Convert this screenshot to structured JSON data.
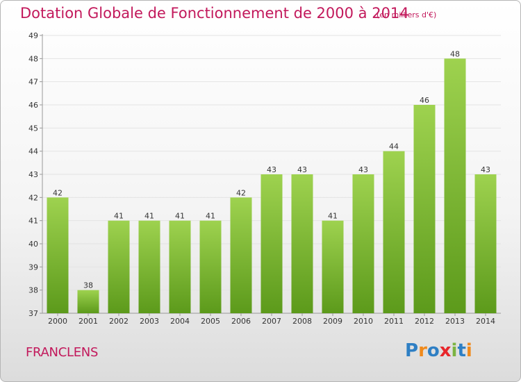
{
  "header": {
    "title": "Dotation Globale de Fonctionnement de 2000 à 2014",
    "unit_note": "(en milliers d'€)"
  },
  "footer": {
    "commune": "FRANCLENS",
    "logo_text": "Proxiti",
    "logo_letters": [
      {
        "ch": "P",
        "color": "#2e7fc4"
      },
      {
        "ch": "r",
        "color": "#f08a1c"
      },
      {
        "ch": "o",
        "color": "#2e7fc4"
      },
      {
        "ch": "x",
        "color": "#e8262b"
      },
      {
        "ch": "i",
        "color": "#7cb342"
      },
      {
        "ch": "t",
        "color": "#2e7fc4"
      },
      {
        "ch": "i",
        "color": "#f08a1c"
      }
    ]
  },
  "colors": {
    "title": "#c2185b",
    "bar_light": "#9ed24f",
    "bar_dark": "#5c9a1b"
  },
  "chart_data": {
    "type": "bar",
    "title": "Dotation Globale de Fonctionnement de 2000 à 2014",
    "subtitle": "(en milliers d'€)",
    "xlabel": "",
    "ylabel": "",
    "categories": [
      "2000",
      "2001",
      "2002",
      "2003",
      "2004",
      "2005",
      "2006",
      "2007",
      "2008",
      "2009",
      "2010",
      "2011",
      "2012",
      "2013",
      "2014"
    ],
    "values": [
      42,
      38,
      41,
      41,
      41,
      41,
      42,
      43,
      43,
      41,
      43,
      44,
      46,
      48,
      43
    ],
    "ylim": [
      37,
      49
    ],
    "yticks": [
      37,
      38,
      39,
      40,
      41,
      42,
      43,
      44,
      45,
      46,
      47,
      48,
      49
    ],
    "grid": true,
    "legend": "none"
  }
}
